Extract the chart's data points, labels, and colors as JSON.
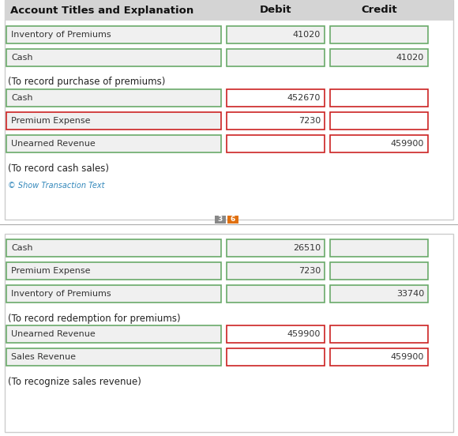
{
  "white": "#ffffff",
  "cell_bg": "#f0f0f0",
  "header_bg": "#d4d4d4",
  "green_border": "#6aaa6a",
  "red_border": "#cc2222",
  "header_text_color": "#111111",
  "cell_text_color": "#333333",
  "note_text_color": "#222222",
  "link_color": "#3388bb",
  "divider_color": "#aaaaaa",
  "section_border": "#cccccc",
  "tab_gray": "#888888",
  "tab_orange": "#e07010",
  "top_section": {
    "header": [
      "Account Titles and Explanation",
      "Debit",
      "Credit"
    ],
    "rows": [
      {
        "label": "Inventory of Premiums",
        "debit": "41020",
        "credit": "",
        "label_red": false,
        "debit_red": false,
        "credit_red": false
      },
      {
        "label": "Cash",
        "debit": "",
        "credit": "41020",
        "label_red": false,
        "debit_red": false,
        "credit_red": false
      },
      {
        "note": "(To record purchase of premiums)"
      },
      {
        "label": "Cash",
        "debit": "452670",
        "credit": "",
        "label_red": false,
        "debit_red": true,
        "credit_red": true
      },
      {
        "label": "Premium Expense",
        "debit": "7230",
        "credit": "",
        "label_red": true,
        "debit_red": true,
        "credit_red": true
      },
      {
        "label": "Unearned Revenue",
        "debit": "",
        "credit": "459900",
        "label_red": false,
        "debit_red": true,
        "credit_red": true
      },
      {
        "note": "(To record cash sales)"
      },
      {
        "link": "Show Transaction Text"
      }
    ]
  },
  "tabs": [
    {
      "label": "3",
      "color": "#888888"
    },
    {
      "label": "6",
      "color": "#e07010"
    }
  ],
  "bottom_section": {
    "rows": [
      {
        "label": "Cash",
        "debit": "26510",
        "credit": "",
        "label_red": false,
        "debit_red": false,
        "credit_red": false
      },
      {
        "label": "Premium Expense",
        "debit": "7230",
        "credit": "",
        "label_red": false,
        "debit_red": false,
        "credit_red": false
      },
      {
        "label": "Inventory of Premiums",
        "debit": "",
        "credit": "33740",
        "label_red": false,
        "debit_red": false,
        "credit_red": false
      },
      {
        "note": "(To record redemption for premiums)"
      },
      {
        "label": "Unearned Revenue",
        "debit": "459900",
        "credit": "",
        "label_red": false,
        "debit_red": true,
        "credit_red": true
      },
      {
        "label": "Sales Revenue",
        "debit": "",
        "credit": "459900",
        "label_red": false,
        "debit_red": true,
        "credit_red": true
      },
      {
        "note": "(To recognize sales revenue)"
      }
    ]
  },
  "figsize": [
    5.8,
    5.52
  ],
  "dpi": 100
}
